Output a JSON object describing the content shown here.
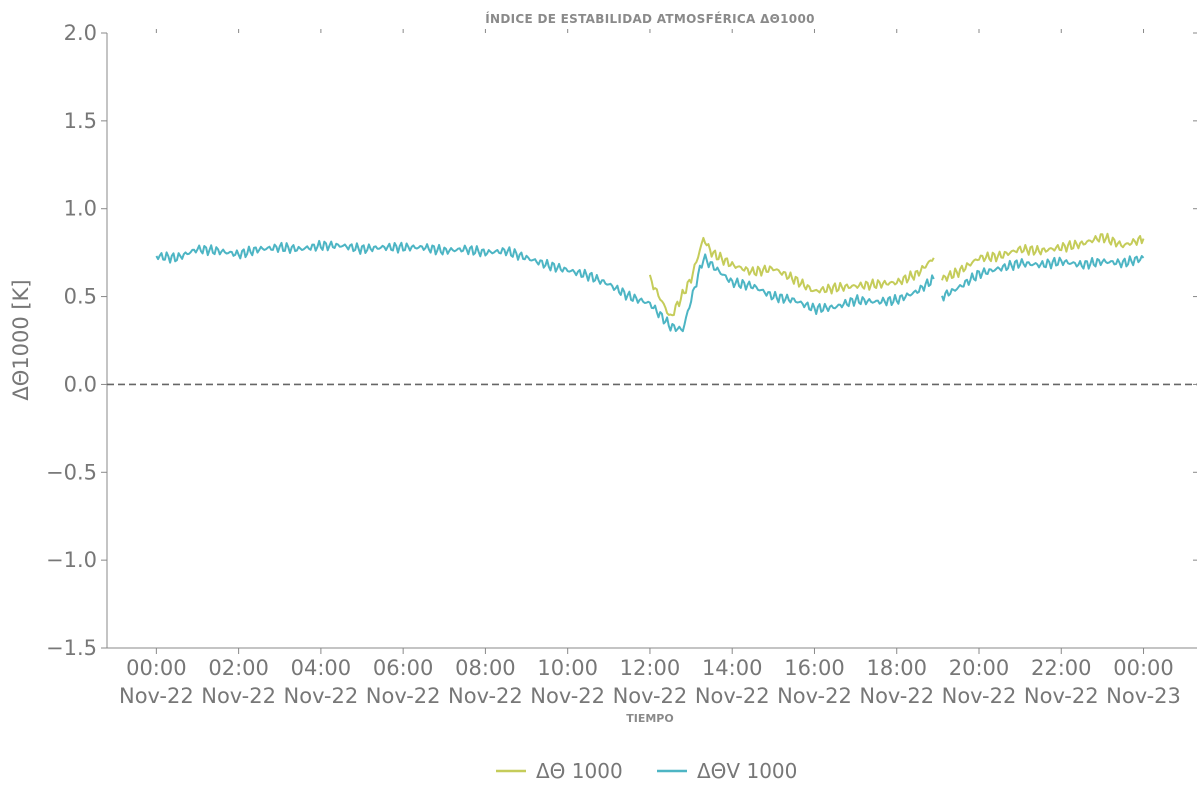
{
  "chart_data": {
    "type": "line",
    "title": "ÍNDICE DE ESTABILIDAD ATMOSFÉRICA ΔΘ1000",
    "xlabel": "TIEMPO",
    "ylabel": "ΔΘ1000 [K]",
    "ylim": [
      -1.5,
      2.0
    ],
    "xlim_hours": [
      -1.2,
      25.3
    ],
    "yticks": [
      2.0,
      1.5,
      1.0,
      0.5,
      0.0,
      -0.5,
      -1.0,
      -1.5
    ],
    "ytick_labels": [
      "2.0",
      "1.5",
      "1.0",
      "0.5",
      "0.0",
      "−0.5",
      "−1.0",
      "−1.5"
    ],
    "xticks_hours": [
      0,
      2,
      4,
      6,
      8,
      10,
      12,
      14,
      16,
      18,
      20,
      22,
      24
    ],
    "xtick_labels": [
      [
        "00:00",
        "Nov-22"
      ],
      [
        "02:00",
        "Nov-22"
      ],
      [
        "04:00",
        "Nov-22"
      ],
      [
        "06:00",
        "Nov-22"
      ],
      [
        "08:00",
        "Nov-22"
      ],
      [
        "10:00",
        "Nov-22"
      ],
      [
        "12:00",
        "Nov-22"
      ],
      [
        "14:00",
        "Nov-22"
      ],
      [
        "16:00",
        "Nov-22"
      ],
      [
        "18:00",
        "Nov-22"
      ],
      [
        "20:00",
        "Nov-22"
      ],
      [
        "22:00",
        "Nov-22"
      ],
      [
        "00:00",
        "Nov-23"
      ]
    ],
    "reference_line": {
      "y": 0.0,
      "style": "dashed",
      "color": "#666666"
    },
    "grid": false,
    "legend_position": "bottom-center",
    "series": [
      {
        "name": "ΔΘ 1000",
        "color": "#c5cc5a",
        "x_hours": [
          12.0,
          12.5,
          13.0,
          13.3,
          13.5,
          14.0,
          14.5,
          15.0,
          15.5,
          16.0,
          16.5,
          17.0,
          17.5,
          18.0,
          18.5,
          18.9,
          null,
          19.1,
          19.5,
          20.0,
          20.5,
          21.0,
          21.5,
          22.0,
          22.5,
          23.0,
          23.5,
          24.0
        ],
        "y": [
          0.6,
          0.38,
          0.6,
          0.83,
          0.75,
          0.68,
          0.64,
          0.66,
          0.6,
          0.53,
          0.55,
          0.56,
          0.57,
          0.58,
          0.63,
          0.72,
          null,
          0.6,
          0.64,
          0.72,
          0.73,
          0.77,
          0.76,
          0.78,
          0.8,
          0.84,
          0.79,
          0.83
        ]
      },
      {
        "name": "ΔΘV 1000",
        "color": "#4db5c4",
        "x_hours": [
          0.0,
          0.5,
          1.0,
          1.5,
          2.0,
          2.5,
          3.0,
          3.5,
          4.0,
          4.5,
          5.0,
          5.5,
          6.0,
          6.5,
          7.0,
          7.5,
          8.0,
          8.5,
          9.0,
          9.5,
          10.0,
          10.5,
          11.0,
          11.5,
          12.0,
          12.5,
          12.8,
          13.0,
          13.3,
          13.6,
          14.0,
          14.5,
          15.0,
          15.5,
          16.0,
          16.5,
          17.0,
          17.5,
          18.0,
          18.5,
          18.9,
          null,
          19.1,
          19.5,
          20.0,
          20.5,
          21.0,
          21.5,
          22.0,
          22.5,
          23.0,
          23.5,
          24.0
        ],
        "y": [
          0.73,
          0.72,
          0.77,
          0.76,
          0.74,
          0.77,
          0.78,
          0.77,
          0.79,
          0.79,
          0.77,
          0.78,
          0.78,
          0.78,
          0.76,
          0.77,
          0.75,
          0.76,
          0.72,
          0.68,
          0.65,
          0.62,
          0.57,
          0.5,
          0.46,
          0.33,
          0.31,
          0.48,
          0.72,
          0.66,
          0.58,
          0.56,
          0.5,
          0.48,
          0.43,
          0.44,
          0.48,
          0.47,
          0.48,
          0.53,
          0.6,
          null,
          0.5,
          0.55,
          0.63,
          0.66,
          0.69,
          0.68,
          0.7,
          0.68,
          0.7,
          0.69,
          0.72
        ]
      }
    ]
  }
}
